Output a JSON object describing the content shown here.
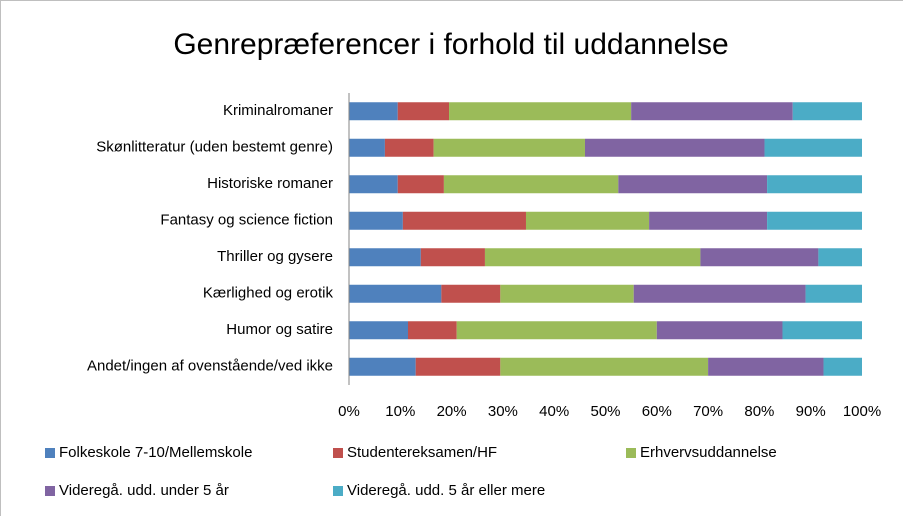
{
  "chart_data": {
    "type": "stacked_bar_horizontal_100",
    "title": "Genrepræferencer i forhold til uddannelse",
    "categories": [
      "Kriminalromaner",
      "Skønlitteratur (uden bestemt genre)",
      "Historiske romaner",
      "Fantasy og science fiction",
      "Thriller og gysere",
      "Kærlighed og erotik",
      "Humor og satire",
      "Andet/ingen af ovenstående/ved ikke"
    ],
    "series": [
      {
        "name": "Folkeskole 7-10/Mellemskole",
        "color": "#4f81bd",
        "values": [
          9.5,
          7,
          9.5,
          10.5,
          14,
          18,
          11.5,
          13
        ]
      },
      {
        "name": "Studentereksamen/HF",
        "color": "#c0504d",
        "values": [
          10,
          9.5,
          9,
          24,
          12.5,
          11.5,
          9.5,
          16.5
        ]
      },
      {
        "name": "Erhvervsuddannelse",
        "color": "#9bbb59",
        "values": [
          35.5,
          29.5,
          34,
          24,
          42,
          26,
          39,
          40.5
        ]
      },
      {
        "name": "Videregå. udd. under 5 år",
        "color": "#8064a2",
        "values": [
          31.5,
          35,
          29,
          23,
          23,
          33.5,
          24.5,
          22.5
        ]
      },
      {
        "name": "Videregå. udd. 5 år eller mere",
        "color": "#4bacc6",
        "values": [
          13.5,
          19,
          18.5,
          18.5,
          8.5,
          11,
          15.5,
          7.5
        ]
      }
    ],
    "xlim": [
      0,
      100
    ],
    "xticks": [
      {
        "value": 0,
        "label": "0%"
      },
      {
        "value": 10,
        "label": "10%"
      },
      {
        "value": 20,
        "label": "20%"
      },
      {
        "value": 30,
        "label": "30%"
      },
      {
        "value": 40,
        "label": "40%"
      },
      {
        "value": 50,
        "label": "50%"
      },
      {
        "value": 60,
        "label": "60%"
      },
      {
        "value": 70,
        "label": "70%"
      },
      {
        "value": 80,
        "label": "80%"
      },
      {
        "value": 90,
        "label": "90%"
      },
      {
        "value": 100,
        "label": "100%"
      }
    ],
    "legend": "bottom"
  }
}
